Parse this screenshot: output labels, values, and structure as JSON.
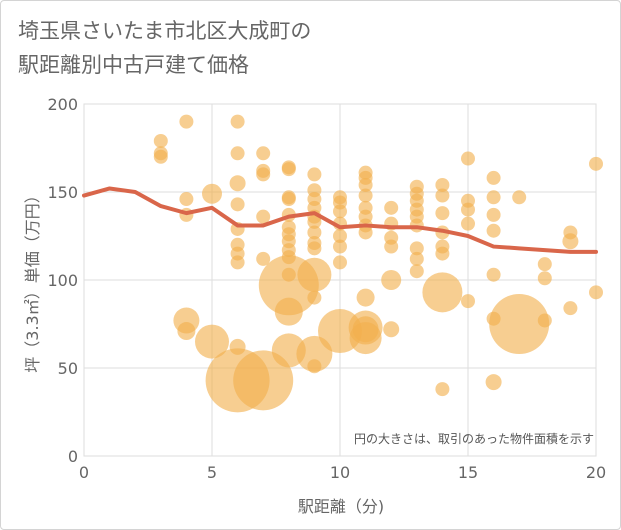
{
  "chart_data": {
    "type": "scatter",
    "title_line1": "埼玉県さいたま市北区大成町の",
    "title_line2": "駅距離別中古戸建て価格",
    "xlabel": "駅距離（分)",
    "ylabel": "坪（3.3㎡）単価（万円）",
    "xlim": [
      0,
      20
    ],
    "ylim": [
      0,
      200
    ],
    "x_ticks": [
      0,
      5,
      10,
      15,
      20
    ],
    "y_ticks": [
      0,
      50,
      100,
      150,
      200
    ],
    "grid": true,
    "annotation": "円の大きさは、取引のあった物件面積を示す",
    "colors": {
      "bubble": "#f2b04e",
      "line": "#d9664a",
      "grid": "#dddddd"
    },
    "points": [
      {
        "x": 3,
        "y": 179,
        "r": 7
      },
      {
        "x": 3,
        "y": 172,
        "r": 7
      },
      {
        "x": 3,
        "y": 170,
        "r": 7
      },
      {
        "x": 4,
        "y": 190,
        "r": 7
      },
      {
        "x": 4,
        "y": 146,
        "r": 7
      },
      {
        "x": 4,
        "y": 137,
        "r": 7
      },
      {
        "x": 4,
        "y": 77,
        "r": 13
      },
      {
        "x": 4,
        "y": 71,
        "r": 9
      },
      {
        "x": 5,
        "y": 149,
        "r": 10
      },
      {
        "x": 5,
        "y": 65,
        "r": 17
      },
      {
        "x": 6,
        "y": 190,
        "r": 7
      },
      {
        "x": 6,
        "y": 172,
        "r": 7
      },
      {
        "x": 6,
        "y": 155,
        "r": 8
      },
      {
        "x": 6,
        "y": 143,
        "r": 7
      },
      {
        "x": 6,
        "y": 129,
        "r": 7
      },
      {
        "x": 6,
        "y": 120,
        "r": 7
      },
      {
        "x": 6,
        "y": 115,
        "r": 7
      },
      {
        "x": 6,
        "y": 110,
        "r": 7
      },
      {
        "x": 6,
        "y": 62,
        "r": 8
      },
      {
        "x": 6,
        "y": 43,
        "r": 32
      },
      {
        "x": 7,
        "y": 172,
        "r": 7
      },
      {
        "x": 7,
        "y": 162,
        "r": 7
      },
      {
        "x": 7,
        "y": 160,
        "r": 7
      },
      {
        "x": 7,
        "y": 136,
        "r": 7
      },
      {
        "x": 7,
        "y": 112,
        "r": 7
      },
      {
        "x": 7,
        "y": 43,
        "r": 30
      },
      {
        "x": 8,
        "y": 164,
        "r": 7
      },
      {
        "x": 8,
        "y": 163,
        "r": 7
      },
      {
        "x": 8,
        "y": 147,
        "r": 7
      },
      {
        "x": 8,
        "y": 146,
        "r": 7
      },
      {
        "x": 8,
        "y": 137,
        "r": 7
      },
      {
        "x": 8,
        "y": 130,
        "r": 7
      },
      {
        "x": 8,
        "y": 126,
        "r": 7
      },
      {
        "x": 8,
        "y": 122,
        "r": 7
      },
      {
        "x": 8,
        "y": 117,
        "r": 7
      },
      {
        "x": 8,
        "y": 113,
        "r": 7
      },
      {
        "x": 8,
        "y": 103,
        "r": 7
      },
      {
        "x": 8,
        "y": 97,
        "r": 30
      },
      {
        "x": 8,
        "y": 82,
        "r": 14
      },
      {
        "x": 8,
        "y": 60,
        "r": 17
      },
      {
        "x": 9,
        "y": 160,
        "r": 7
      },
      {
        "x": 9,
        "y": 151,
        "r": 7
      },
      {
        "x": 9,
        "y": 146,
        "r": 7
      },
      {
        "x": 9,
        "y": 141,
        "r": 7
      },
      {
        "x": 9,
        "y": 136,
        "r": 7
      },
      {
        "x": 9,
        "y": 133,
        "r": 7
      },
      {
        "x": 9,
        "y": 127,
        "r": 7
      },
      {
        "x": 9,
        "y": 121,
        "r": 7
      },
      {
        "x": 9,
        "y": 118,
        "r": 7
      },
      {
        "x": 9,
        "y": 103,
        "r": 17
      },
      {
        "x": 9,
        "y": 90,
        "r": 7
      },
      {
        "x": 9,
        "y": 58,
        "r": 18
      },
      {
        "x": 9,
        "y": 51,
        "r": 7
      },
      {
        "x": 10,
        "y": 147,
        "r": 7
      },
      {
        "x": 10,
        "y": 144,
        "r": 7
      },
      {
        "x": 10,
        "y": 139,
        "r": 7
      },
      {
        "x": 10,
        "y": 132,
        "r": 7
      },
      {
        "x": 10,
        "y": 125,
        "r": 7
      },
      {
        "x": 10,
        "y": 119,
        "r": 7
      },
      {
        "x": 10,
        "y": 110,
        "r": 7
      },
      {
        "x": 10,
        "y": 71,
        "r": 22
      },
      {
        "x": 11,
        "y": 161,
        "r": 7
      },
      {
        "x": 11,
        "y": 158,
        "r": 7
      },
      {
        "x": 11,
        "y": 154,
        "r": 7
      },
      {
        "x": 11,
        "y": 148,
        "r": 7
      },
      {
        "x": 11,
        "y": 141,
        "r": 7
      },
      {
        "x": 11,
        "y": 136,
        "r": 7
      },
      {
        "x": 11,
        "y": 131,
        "r": 7
      },
      {
        "x": 11,
        "y": 127,
        "r": 7
      },
      {
        "x": 11,
        "y": 90,
        "r": 9
      },
      {
        "x": 11,
        "y": 73,
        "r": 17
      },
      {
        "x": 11,
        "y": 72,
        "r": 13
      },
      {
        "x": 11,
        "y": 67,
        "r": 16
      },
      {
        "x": 12,
        "y": 141,
        "r": 7
      },
      {
        "x": 12,
        "y": 132,
        "r": 7
      },
      {
        "x": 12,
        "y": 124,
        "r": 7
      },
      {
        "x": 12,
        "y": 119,
        "r": 7
      },
      {
        "x": 12,
        "y": 100,
        "r": 10
      },
      {
        "x": 12,
        "y": 72,
        "r": 8
      },
      {
        "x": 13,
        "y": 153,
        "r": 7
      },
      {
        "x": 13,
        "y": 149,
        "r": 7
      },
      {
        "x": 13,
        "y": 145,
        "r": 7
      },
      {
        "x": 13,
        "y": 140,
        "r": 7
      },
      {
        "x": 13,
        "y": 136,
        "r": 7
      },
      {
        "x": 13,
        "y": 131,
        "r": 7
      },
      {
        "x": 13,
        "y": 118,
        "r": 7
      },
      {
        "x": 13,
        "y": 112,
        "r": 7
      },
      {
        "x": 13,
        "y": 105,
        "r": 7
      },
      {
        "x": 14,
        "y": 154,
        "r": 7
      },
      {
        "x": 14,
        "y": 148,
        "r": 7
      },
      {
        "x": 14,
        "y": 138,
        "r": 7
      },
      {
        "x": 14,
        "y": 127,
        "r": 7
      },
      {
        "x": 14,
        "y": 119,
        "r": 7
      },
      {
        "x": 14,
        "y": 115,
        "r": 7
      },
      {
        "x": 14,
        "y": 93,
        "r": 20
      },
      {
        "x": 14,
        "y": 38,
        "r": 7
      },
      {
        "x": 15,
        "y": 169,
        "r": 7
      },
      {
        "x": 15,
        "y": 145,
        "r": 7
      },
      {
        "x": 15,
        "y": 140,
        "r": 7
      },
      {
        "x": 15,
        "y": 132,
        "r": 7
      },
      {
        "x": 15,
        "y": 88,
        "r": 7
      },
      {
        "x": 16,
        "y": 158,
        "r": 7
      },
      {
        "x": 16,
        "y": 147,
        "r": 7
      },
      {
        "x": 16,
        "y": 137,
        "r": 7
      },
      {
        "x": 16,
        "y": 128,
        "r": 7
      },
      {
        "x": 16,
        "y": 103,
        "r": 7
      },
      {
        "x": 16,
        "y": 78,
        "r": 7
      },
      {
        "x": 16,
        "y": 42,
        "r": 8
      },
      {
        "x": 17,
        "y": 147,
        "r": 7
      },
      {
        "x": 17,
        "y": 75,
        "r": 30
      },
      {
        "x": 18,
        "y": 109,
        "r": 7
      },
      {
        "x": 18,
        "y": 101,
        "r": 7
      },
      {
        "x": 18,
        "y": 77,
        "r": 7
      },
      {
        "x": 19,
        "y": 127,
        "r": 7
      },
      {
        "x": 19,
        "y": 122,
        "r": 8
      },
      {
        "x": 19,
        "y": 84,
        "r": 7
      },
      {
        "x": 20,
        "y": 166,
        "r": 7
      },
      {
        "x": 20,
        "y": 93,
        "r": 7
      }
    ],
    "trend_line": {
      "x": [
        0,
        1,
        2,
        3,
        4,
        5,
        6,
        7,
        8,
        9,
        10,
        11,
        12,
        13,
        14,
        15,
        16,
        17,
        18,
        19,
        20
      ],
      "y": [
        148,
        152,
        150,
        142,
        138,
        141,
        131,
        131,
        136,
        138,
        130,
        131,
        130,
        130,
        128,
        125,
        119,
        118,
        117,
        116,
        116
      ]
    }
  }
}
